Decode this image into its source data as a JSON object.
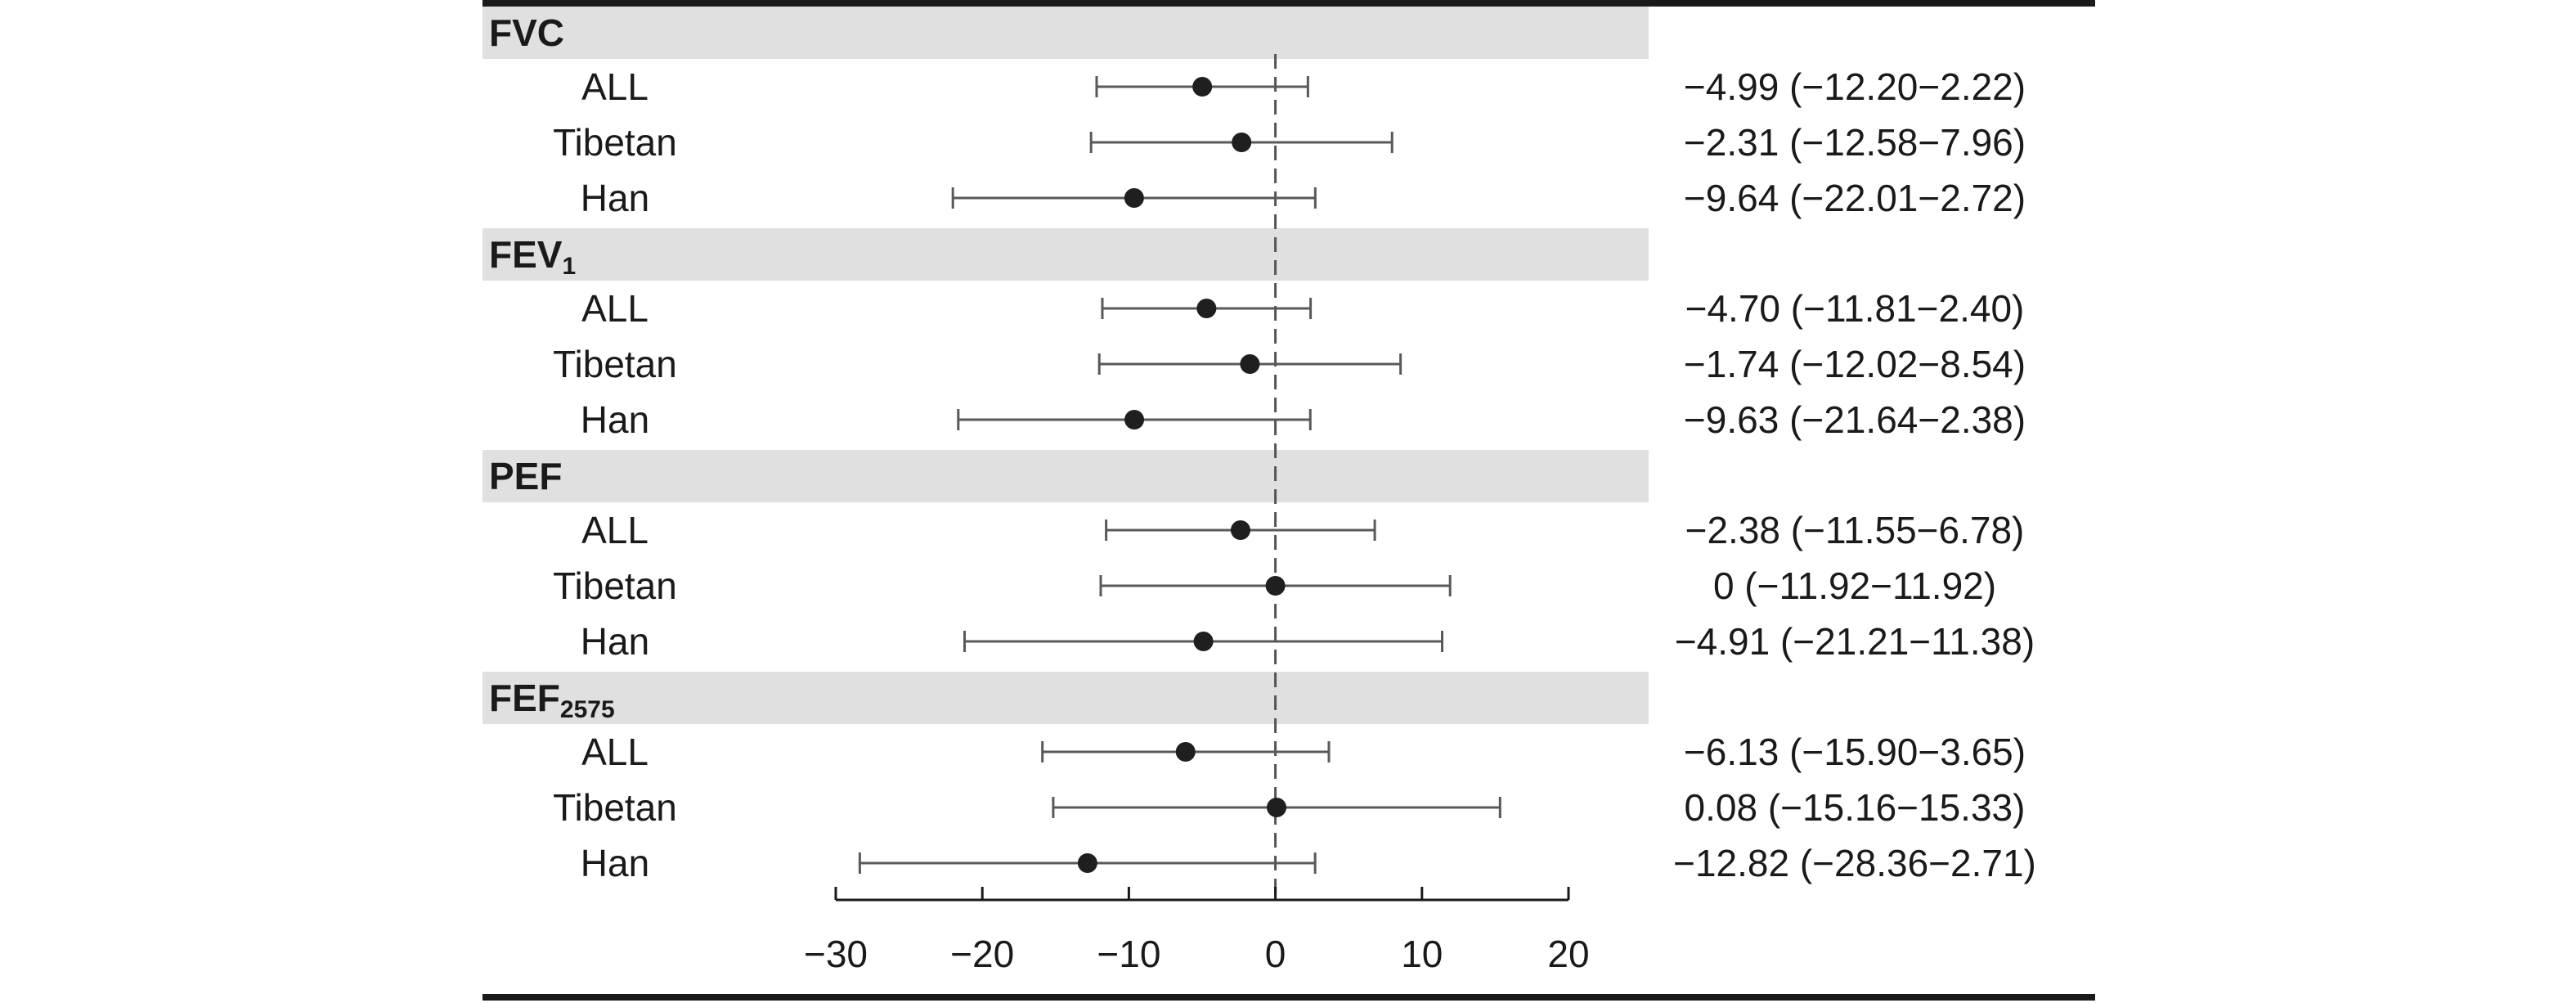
{
  "chart_data": {
    "type": "forest",
    "xlim": [
      -30,
      20
    ],
    "xticks": [
      -30,
      -20,
      -10,
      0,
      10,
      20
    ],
    "xtick_labels": [
      "−30",
      "−20",
      "−10",
      "0",
      "10",
      "20"
    ],
    "reference_line": 0,
    "groups": [
      {
        "name": "FVC",
        "subscript": "",
        "rows": [
          {
            "label": "ALL",
            "estimate": -4.99,
            "lower": -12.2,
            "upper": 2.22,
            "ci_text": "−4.99 (−12.20−2.22)"
          },
          {
            "label": "Tibetan",
            "estimate": -2.31,
            "lower": -12.58,
            "upper": 7.96,
            "ci_text": "−2.31 (−12.58−7.96)"
          },
          {
            "label": "Han",
            "estimate": -9.64,
            "lower": -22.01,
            "upper": 2.72,
            "ci_text": "−9.64 (−22.01−2.72)"
          }
        ]
      },
      {
        "name": "FEV",
        "subscript": "1",
        "rows": [
          {
            "label": "ALL",
            "estimate": -4.7,
            "lower": -11.81,
            "upper": 2.4,
            "ci_text": "−4.70 (−11.81−2.40)"
          },
          {
            "label": "Tibetan",
            "estimate": -1.74,
            "lower": -12.02,
            "upper": 8.54,
            "ci_text": "−1.74 (−12.02−8.54)"
          },
          {
            "label": "Han",
            "estimate": -9.63,
            "lower": -21.64,
            "upper": 2.38,
            "ci_text": "−9.63 (−21.64−2.38)"
          }
        ]
      },
      {
        "name": "PEF",
        "subscript": "",
        "rows": [
          {
            "label": "ALL",
            "estimate": -2.38,
            "lower": -11.55,
            "upper": 6.78,
            "ci_text": "−2.38 (−11.55−6.78)"
          },
          {
            "label": "Tibetan",
            "estimate": 0,
            "lower": -11.92,
            "upper": 11.92,
            "ci_text": "0 (−11.92−11.92)"
          },
          {
            "label": "Han",
            "estimate": -4.91,
            "lower": -21.21,
            "upper": 11.38,
            "ci_text": "−4.91 (−21.21−11.38)"
          }
        ]
      },
      {
        "name": "FEF",
        "subscript": "2575",
        "rows": [
          {
            "label": "ALL",
            "estimate": -6.13,
            "lower": -15.9,
            "upper": 3.65,
            "ci_text": "−6.13 (−15.90−3.65)"
          },
          {
            "label": "Tibetan",
            "estimate": 0.08,
            "lower": -15.16,
            "upper": 15.33,
            "ci_text": "0.08 (−15.16−15.33)"
          },
          {
            "label": "Han",
            "estimate": -12.82,
            "lower": -28.36,
            "upper": 2.71,
            "ci_text": "−12.82 (−28.36−2.71)"
          }
        ]
      }
    ],
    "colors": {
      "header_band": "#e0e0e0",
      "marker": "#1f1f1f",
      "ci_line": "#595959",
      "rule": "#1a1a1a",
      "text": "#1a1a1a"
    }
  }
}
